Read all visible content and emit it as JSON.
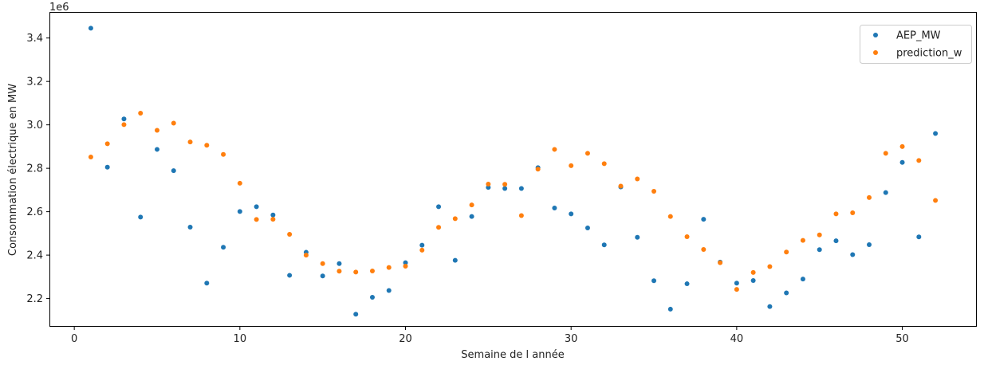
{
  "chart_data": {
    "type": "scatter",
    "title": "",
    "xlabel": "Semaine de l année",
    "ylabel": "Consommation électrique en MW",
    "y_offset_label": "1e6",
    "xlim": [
      -1.5,
      54.5
    ],
    "ylim": [
      2.07,
      3.52
    ],
    "x_ticks": [
      0,
      10,
      20,
      30,
      40,
      50
    ],
    "x_tick_labels": [
      "0",
      "10",
      "20",
      "30",
      "40",
      "50"
    ],
    "y_ticks": [
      2.2,
      2.4,
      2.6,
      2.8,
      3.0,
      3.2,
      3.4
    ],
    "y_tick_labels": [
      "2.2",
      "2.4",
      "2.6",
      "2.8",
      "3.0",
      "3.2",
      "3.4"
    ],
    "grid": false,
    "legend_position": "top-right",
    "x": [
      1,
      2,
      3,
      4,
      5,
      6,
      7,
      8,
      9,
      10,
      11,
      12,
      13,
      14,
      15,
      16,
      17,
      18,
      19,
      20,
      21,
      22,
      23,
      24,
      25,
      26,
      27,
      28,
      29,
      30,
      31,
      32,
      33,
      34,
      35,
      36,
      37,
      38,
      39,
      40,
      41,
      42,
      43,
      44,
      45,
      46,
      47,
      48,
      49,
      50,
      51,
      52
    ],
    "series": [
      {
        "name": "AEP_MW",
        "color": "#1f77b4",
        "values": [
          3.445,
          2.805,
          3.027,
          2.575,
          2.887,
          2.789,
          2.529,
          2.271,
          2.436,
          2.601,
          2.623,
          2.585,
          2.307,
          2.413,
          2.304,
          2.361,
          2.128,
          2.206,
          2.237,
          2.365,
          2.446,
          2.623,
          2.376,
          2.578,
          2.712,
          2.707,
          2.707,
          2.803,
          2.617,
          2.59,
          2.525,
          2.447,
          2.714,
          2.482,
          2.282,
          2.151,
          2.268,
          2.565,
          2.368,
          2.271,
          2.283,
          2.163,
          2.226,
          2.29,
          2.425,
          2.466,
          2.402,
          2.448,
          2.688,
          2.827,
          2.484,
          2.96
        ]
      },
      {
        "name": "prediction_w",
        "color": "#ff7f0e",
        "values": [
          2.852,
          2.913,
          3.001,
          3.054,
          2.975,
          3.008,
          2.921,
          2.906,
          2.864,
          2.731,
          2.564,
          2.565,
          2.496,
          2.4,
          2.361,
          2.326,
          2.322,
          2.327,
          2.343,
          2.349,
          2.423,
          2.528,
          2.568,
          2.631,
          2.727,
          2.726,
          2.582,
          2.796,
          2.887,
          2.812,
          2.869,
          2.821,
          2.718,
          2.751,
          2.694,
          2.578,
          2.485,
          2.426,
          2.365,
          2.242,
          2.32,
          2.347,
          2.414,
          2.468,
          2.493,
          2.59,
          2.595,
          2.665,
          2.869,
          2.9,
          2.836,
          2.652
        ]
      }
    ]
  }
}
